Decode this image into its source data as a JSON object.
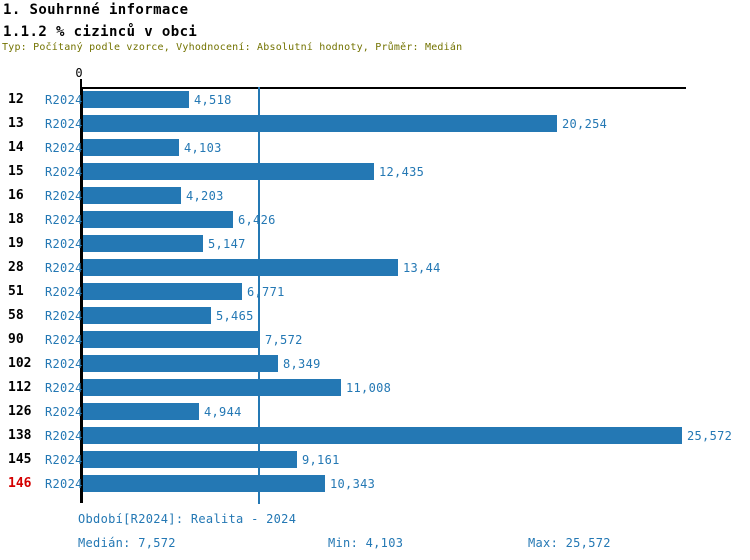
{
  "header": {
    "title1": "1. Souhrnné informace",
    "title2": "1.1.2 % cizinců v obci",
    "subtitle": "Typ: Počítaný podle vzorce, Vyhodnocení: Absolutní hodnoty, Průměr: Medián"
  },
  "colors": {
    "bar_blue": "#2478b4",
    "axis_black": "#000000",
    "highlight_red": "#d40000",
    "subtitle_olive": "#737300"
  },
  "chart_data": {
    "type": "bar",
    "orientation": "horizontal",
    "title": "1.1.2 % cizinců v obci",
    "xlabel": "",
    "ylabel": "",
    "xlim": [
      0,
      25.8
    ],
    "grid": false,
    "axis_zero_label": "0",
    "median_value": 7.572,
    "median_line": true,
    "rows": [
      {
        "id": "12",
        "period": "R2024",
        "value": 4.518,
        "label": "4,518",
        "highlight": false
      },
      {
        "id": "13",
        "period": "R2024",
        "value": 20.254,
        "label": "20,254",
        "highlight": false
      },
      {
        "id": "14",
        "period": "R2024",
        "value": 4.103,
        "label": "4,103",
        "highlight": false
      },
      {
        "id": "15",
        "period": "R2024",
        "value": 12.435,
        "label": "12,435",
        "highlight": false
      },
      {
        "id": "16",
        "period": "R2024",
        "value": 4.203,
        "label": "4,203",
        "highlight": false
      },
      {
        "id": "18",
        "period": "R2024",
        "value": 6.426,
        "label": "6,426",
        "highlight": false
      },
      {
        "id": "19",
        "period": "R2024",
        "value": 5.147,
        "label": "5,147",
        "highlight": false
      },
      {
        "id": "28",
        "period": "R2024",
        "value": 13.44,
        "label": "13,44",
        "highlight": false
      },
      {
        "id": "51",
        "period": "R2024",
        "value": 6.771,
        "label": "6,771",
        "highlight": false
      },
      {
        "id": "58",
        "period": "R2024",
        "value": 5.465,
        "label": "5,465",
        "highlight": false
      },
      {
        "id": "90",
        "period": "R2024",
        "value": 7.572,
        "label": "7,572",
        "highlight": false
      },
      {
        "id": "102",
        "period": "R2024",
        "value": 8.349,
        "label": "8,349",
        "highlight": false
      },
      {
        "id": "112",
        "period": "R2024",
        "value": 11.008,
        "label": "11,008",
        "highlight": false
      },
      {
        "id": "126",
        "period": "R2024",
        "value": 4.944,
        "label": "4,944",
        "highlight": false
      },
      {
        "id": "138",
        "period": "R2024",
        "value": 25.572,
        "label": "25,572",
        "highlight": false
      },
      {
        "id": "145",
        "period": "R2024",
        "value": 9.161,
        "label": "9,161",
        "highlight": false
      },
      {
        "id": "146",
        "period": "R2024",
        "value": 10.343,
        "label": "10,343",
        "highlight": true
      }
    ]
  },
  "footer": {
    "period_line": "Období[R2024]: Realita - 2024",
    "median": "Medián: 7,572",
    "min": "Min: 4,103",
    "max": "Max: 25,572"
  }
}
